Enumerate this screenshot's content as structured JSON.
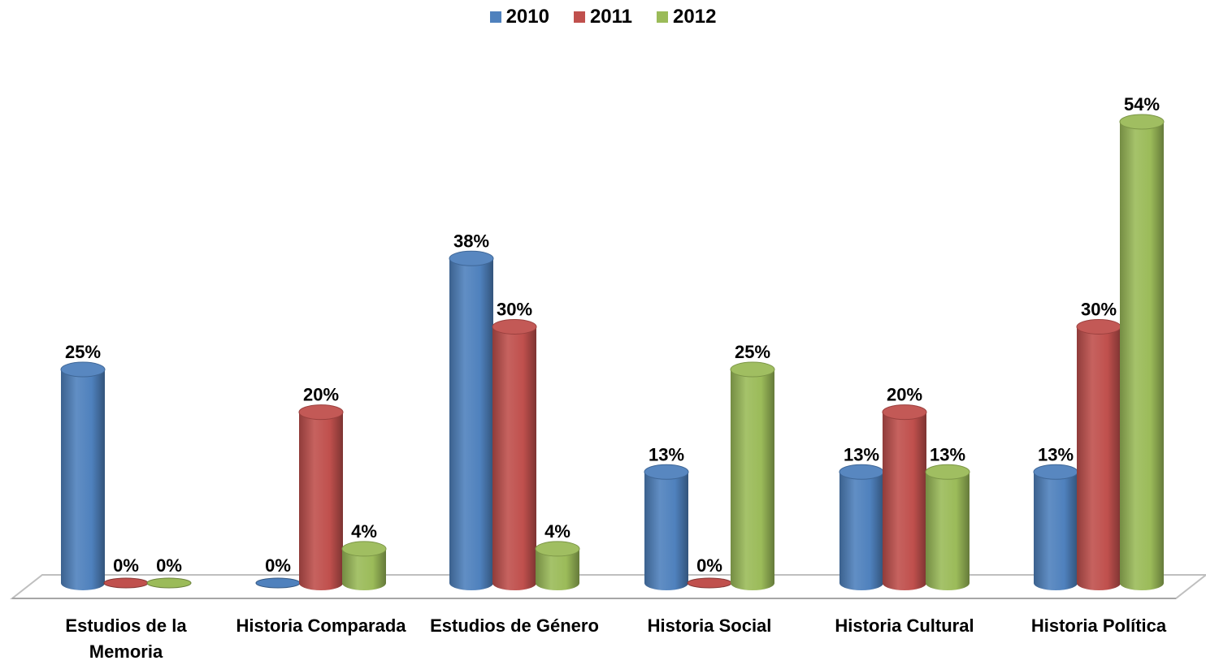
{
  "chart_data": {
    "type": "bar",
    "categories": [
      "Estudios de la Memoria",
      "Historia Comparada",
      "Estudios de Género",
      "Historia Social",
      "Historia Cultural",
      "Historia Política"
    ],
    "series": [
      {
        "name": "2010",
        "color": "#4F81BD",
        "values": [
          25,
          0,
          38,
          13,
          13,
          13
        ],
        "labels": [
          "25%",
          "0%",
          "38%",
          "13%",
          "13%",
          "13%"
        ]
      },
      {
        "name": "2011",
        "color": "#C0504D",
        "values": [
          0,
          20,
          30,
          0,
          20,
          30
        ],
        "labels": [
          "0%",
          "20%",
          "30%",
          "0%",
          "20%",
          "30%"
        ]
      },
      {
        "name": "2012",
        "color": "#9BBB59",
        "values": [
          0,
          4,
          4,
          25,
          13,
          54
        ],
        "labels": [
          "0%",
          "4%",
          "4%",
          "25%",
          "13%",
          "54%"
        ]
      }
    ],
    "ylim": [
      0,
      54
    ],
    "legend_position": "top",
    "grid": false,
    "style": "3d-cylinder"
  }
}
